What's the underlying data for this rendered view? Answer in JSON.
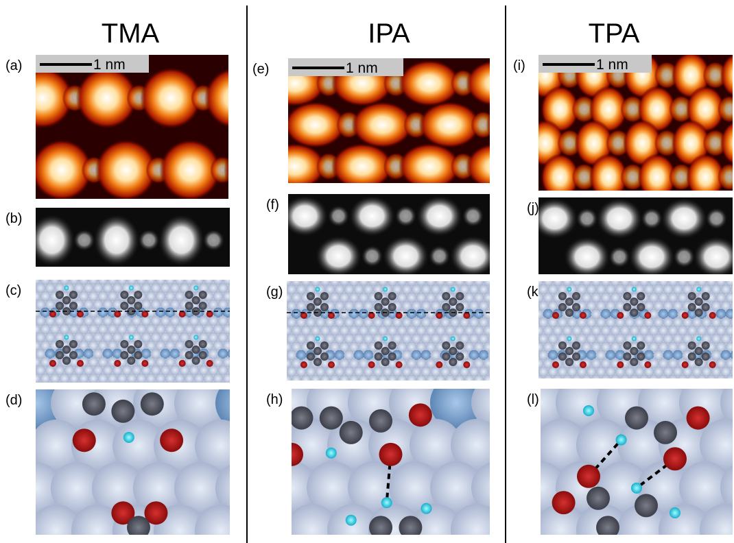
{
  "columns": [
    {
      "title": "TMA",
      "scale_bar": "1 nm",
      "panels": [
        "(a)",
        "(b)",
        "(c)",
        "(d)"
      ]
    },
    {
      "title": "IPA",
      "scale_bar": "1 nm",
      "panels": [
        "(e)",
        "(f)",
        "(g)",
        "(h)"
      ]
    },
    {
      "title": "TPA",
      "scale_bar": "1 nm",
      "panels": [
        "(i)",
        "(j)",
        "(k)",
        "(l)"
      ]
    }
  ]
}
